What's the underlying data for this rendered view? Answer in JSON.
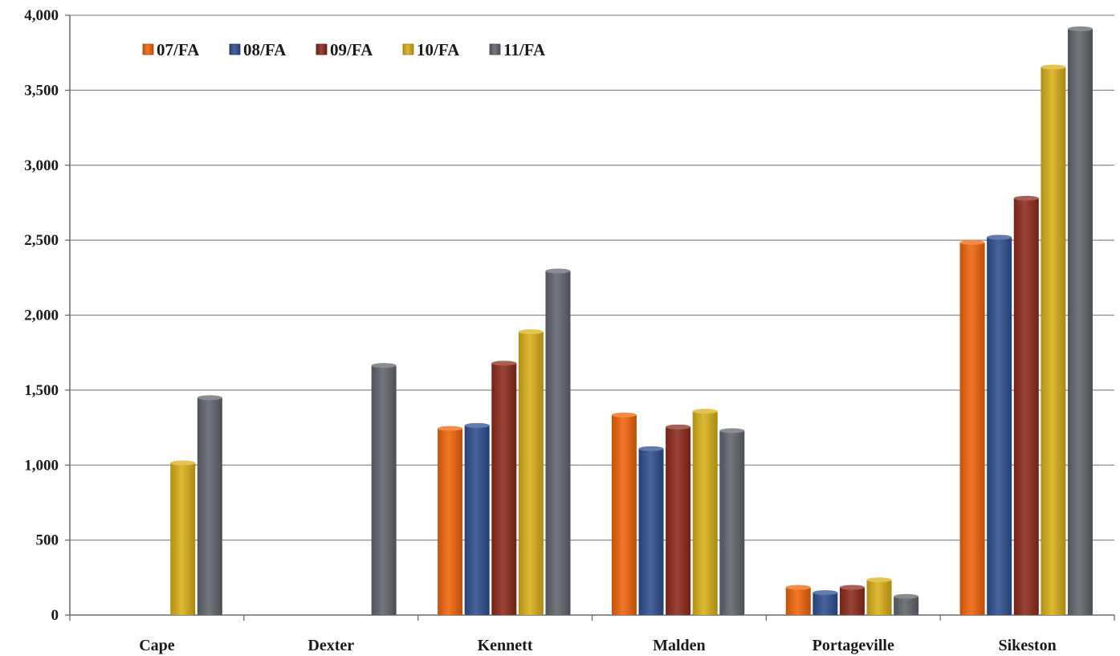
{
  "chart_data": {
    "type": "bar",
    "title": "",
    "xlabel": "",
    "ylabel": "",
    "ylim": [
      0,
      4000
    ],
    "yticks": [
      0,
      500,
      1000,
      1500,
      2000,
      2500,
      3000,
      3500,
      4000
    ],
    "ytick_labels": [
      "0",
      "500",
      "1,000",
      "1,500",
      "2,000",
      "2,500",
      "3,000",
      "3,500",
      "4,000"
    ],
    "grid": true,
    "legend_position": "top-left",
    "categories": [
      "Cape",
      "Dexter",
      "Kennett",
      "Malden",
      "Portageville",
      "Sikeston"
    ],
    "series": [
      {
        "name": "07/FA",
        "color": "#F0640A",
        "values": [
          0,
          0,
          1250,
          1340,
          190,
          2490
        ]
      },
      {
        "name": "08/FA",
        "color": "#2E4F8F",
        "values": [
          0,
          0,
          1270,
          1115,
          155,
          2525
        ]
      },
      {
        "name": "09/FA",
        "color": "#8E2A1C",
        "values": [
          0,
          0,
          1685,
          1260,
          190,
          2785
        ]
      },
      {
        "name": "10/FA",
        "color": "#D9B018",
        "values": [
          1020,
          0,
          1895,
          1365,
          240,
          3660
        ]
      },
      {
        "name": "11/FA",
        "color": "#62656C",
        "values": [
          1455,
          1670,
          2300,
          1235,
          130,
          3915
        ]
      }
    ]
  }
}
